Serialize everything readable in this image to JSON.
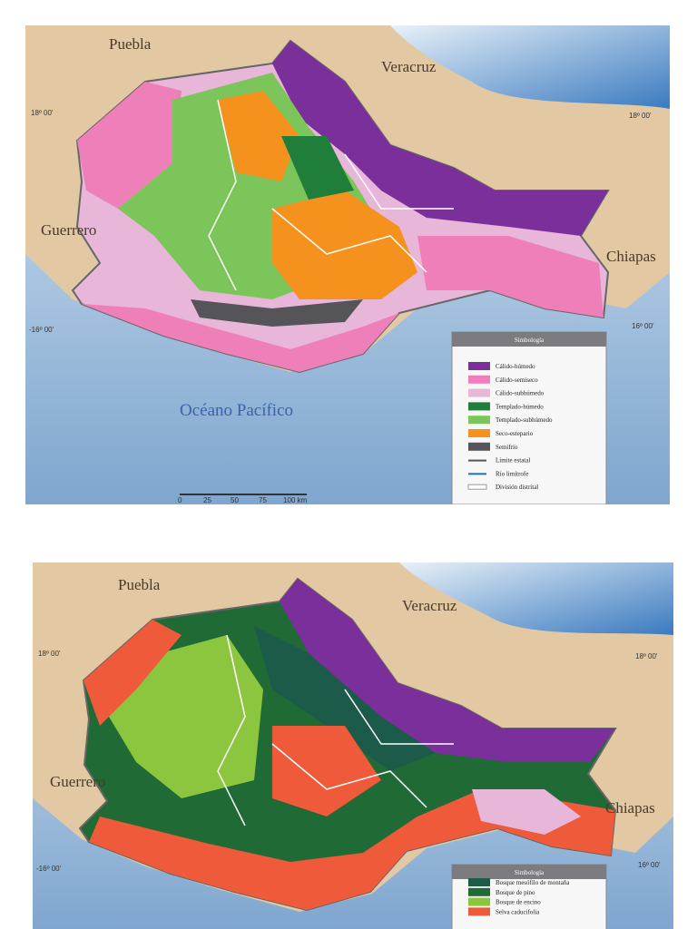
{
  "maps": [
    {
      "states": [
        "Puebla",
        "Veracruz",
        "Guerrero",
        "Chiapas"
      ],
      "coords": [
        "18º 00'",
        "18º 00'",
        "-16º 00'",
        "16º 00'"
      ],
      "ocean": "Océano Pacífico",
      "scale": [
        "0",
        "25",
        "50",
        "75",
        "100 km"
      ],
      "legend": {
        "title": "Simbología",
        "items": [
          {
            "label": "Cálido-húmedo",
            "color": "#7b2f9a"
          },
          {
            "label": "Cálido-semiseco",
            "color": "#ee7fb8"
          },
          {
            "label": "Cálido-subhúmedo",
            "color": "#e8b6d8"
          },
          {
            "label": "Templado-húmedo",
            "color": "#1f7f3a"
          },
          {
            "label": "Templado-subhúmedo",
            "color": "#7cc55a"
          },
          {
            "label": "Seco-estepario",
            "color": "#f5921e"
          },
          {
            "label": "Semifrío",
            "color": "#555559"
          },
          {
            "label": "Límite estatal",
            "color": "#555559",
            "style": "line"
          },
          {
            "label": "Río limítrofe",
            "color": "#1f6fae",
            "style": "line"
          },
          {
            "label": "División distrital",
            "color": "#ffffff",
            "style": "outline"
          }
        ]
      }
    },
    {
      "states": [
        "Puebla",
        "Veracruz",
        "Guerrero",
        "Chiapas"
      ],
      "coords": [
        "18º 00'",
        "18º 00'",
        "-16º 00'",
        "16º 00'"
      ],
      "legend": {
        "title": "Simbología",
        "items": [
          {
            "label": "Bosque mesófilo de montaña",
            "color": "#1c5a4a"
          },
          {
            "label": "Bosque de pino",
            "color": "#1f6a35"
          },
          {
            "label": "Bosque de encino",
            "color": "#8cc63e"
          },
          {
            "label": "Selva caducifolia",
            "color": "#ef5a3a"
          }
        ]
      }
    }
  ]
}
